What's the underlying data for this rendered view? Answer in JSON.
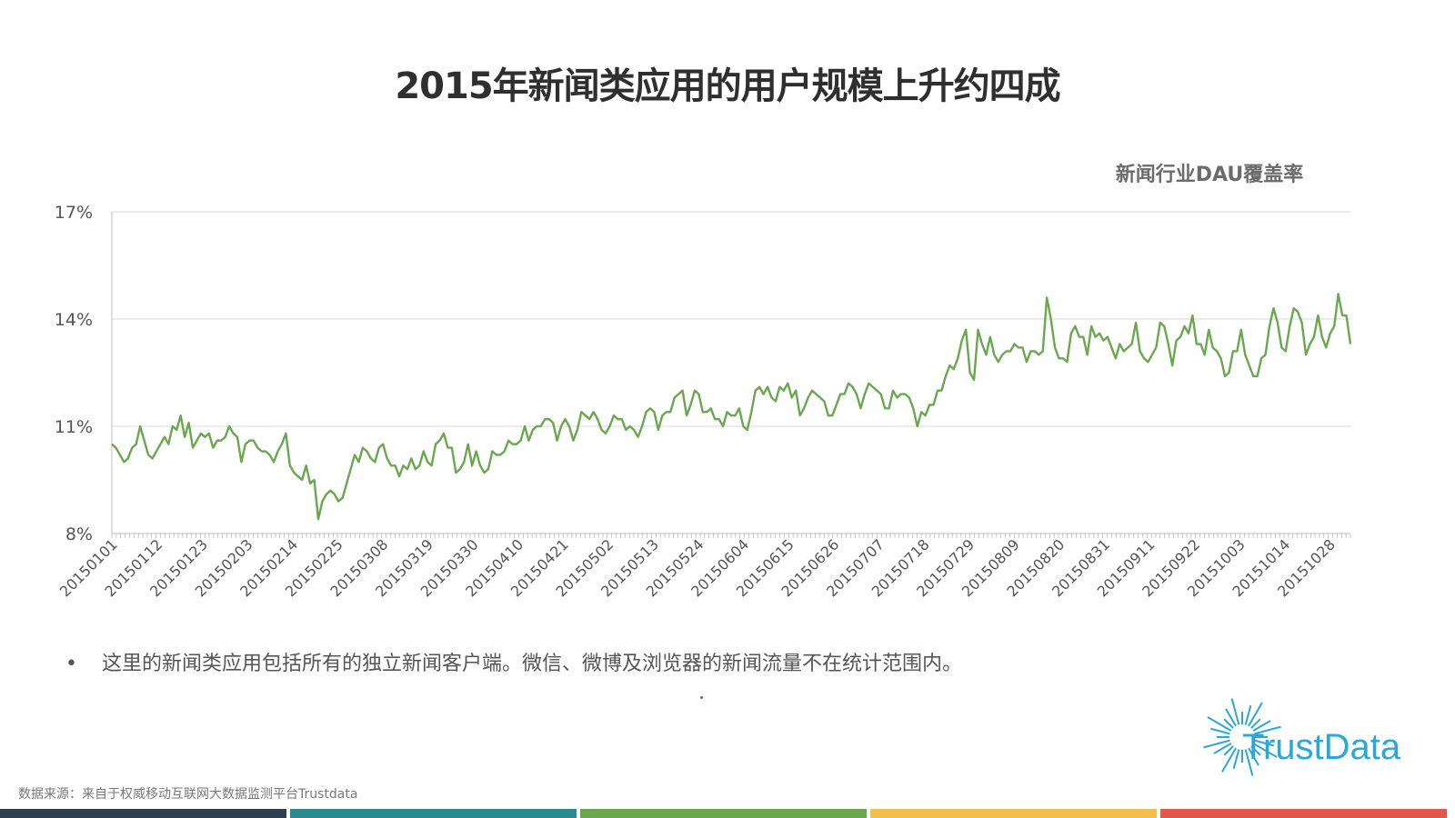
{
  "title": "2015年新闻类应用的用户规模上升约四成",
  "legend": {
    "label": "新闻行业DAU覆盖率",
    "color": "#6aa84f"
  },
  "note": {
    "bullet": "•",
    "text": "这里的新闻类应用包括所有的独立新闻客户端。微信、微博及浏览器的新闻流量不在统计范围内。"
  },
  "source": "数据来源：来自于权威移动互联网大数据监测平台Trustdata",
  "logo": {
    "text": "TrustData",
    "color": "#2ba7d8"
  },
  "bottom_bar_colors": [
    "#2d3e50",
    "#2a8a8f",
    "#6aa84f",
    "#f1c04b",
    "#e2574c"
  ],
  "chart_data": {
    "type": "line",
    "series": [
      {
        "name": "新闻行业DAU覆盖率",
        "color": "#6aa84f",
        "start": "20150101",
        "values": [
          10.5,
          10.4,
          10.2,
          10.0,
          10.1,
          10.4,
          10.5,
          11.0,
          10.6,
          10.2,
          10.1,
          10.3,
          10.5,
          10.7,
          10.5,
          11.0,
          10.9,
          11.3,
          10.7,
          11.1,
          10.4,
          10.6,
          10.8,
          10.7,
          10.8,
          10.4,
          10.6,
          10.6,
          10.7,
          11.0,
          10.8,
          10.7,
          10.0,
          10.5,
          10.6,
          10.6,
          10.4,
          10.3,
          10.3,
          10.2,
          10.0,
          10.3,
          10.5,
          10.8,
          9.9,
          9.7,
          9.6,
          9.5,
          9.9,
          9.4,
          9.5,
          8.4,
          8.9,
          9.1,
          9.2,
          9.1,
          8.9,
          9.0,
          9.4,
          9.8,
          10.2,
          10.0,
          10.4,
          10.3,
          10.1,
          10.0,
          10.4,
          10.5,
          10.1,
          9.9,
          9.9,
          9.6,
          9.9,
          9.8,
          10.1,
          9.8,
          9.9,
          10.3,
          10.0,
          9.9,
          10.5,
          10.6,
          10.8,
          10.4,
          10.4,
          9.7,
          9.8,
          10.0,
          10.5,
          9.9,
          10.3,
          9.9,
          9.7,
          9.8,
          10.3,
          10.2,
          10.2,
          10.3,
          10.6,
          10.5,
          10.5,
          10.6,
          11.0,
          10.6,
          10.9,
          11.0,
          11.0,
          11.2,
          11.2,
          11.1,
          10.6,
          11.0,
          11.2,
          11.0,
          10.6,
          10.9,
          11.4,
          11.3,
          11.2,
          11.4,
          11.2,
          10.9,
          10.8,
          11.0,
          11.3,
          11.2,
          11.2,
          10.9,
          11.0,
          10.9,
          10.7,
          11.0,
          11.4,
          11.5,
          11.4,
          10.9,
          11.3,
          11.4,
          11.4,
          11.8,
          11.9,
          12.0,
          11.3,
          11.6,
          12.0,
          11.9,
          11.4,
          11.4,
          11.5,
          11.2,
          11.2,
          11.0,
          11.4,
          11.3,
          11.3,
          11.5,
          11.0,
          10.9,
          11.4,
          12.0,
          12.1,
          11.9,
          12.1,
          11.8,
          11.7,
          12.1,
          12.0,
          12.2,
          11.8,
          12.0,
          11.3,
          11.5,
          11.8,
          12.0,
          11.9,
          11.8,
          11.7,
          11.3,
          11.3,
          11.6,
          11.9,
          11.9,
          12.2,
          12.1,
          11.9,
          11.5,
          11.9,
          12.2,
          12.1,
          12.0,
          11.9,
          11.5,
          11.5,
          12.0,
          11.8,
          11.9,
          11.9,
          11.8,
          11.5,
          11.0,
          11.4,
          11.3,
          11.6,
          11.6,
          12.0,
          12.0,
          12.4,
          12.7,
          12.6,
          12.9,
          13.4,
          13.7,
          12.5,
          12.3,
          13.7,
          13.3,
          13.0,
          13.5,
          13.0,
          12.8,
          13.0,
          13.1,
          13.1,
          13.3,
          13.2,
          13.2,
          12.8,
          13.1,
          13.1,
          13.0,
          13.1,
          14.6,
          14.0,
          13.2,
          12.9,
          12.9,
          12.8,
          13.6,
          13.8,
          13.5,
          13.5,
          13.0,
          13.8,
          13.5,
          13.6,
          13.4,
          13.5,
          13.2,
          12.9,
          13.3,
          13.1,
          13.2,
          13.3,
          13.9,
          13.1,
          12.9,
          12.8,
          13.0,
          13.2,
          13.9,
          13.8,
          13.3,
          12.7,
          13.4,
          13.5,
          13.8,
          13.6,
          14.1,
          13.3,
          13.3,
          13.0,
          13.7,
          13.2,
          13.1,
          12.9,
          12.4,
          12.5,
          13.1,
          13.1,
          13.7,
          13.0,
          12.7,
          12.4,
          12.4,
          12.9,
          13.0,
          13.8,
          14.3,
          13.9,
          13.2,
          13.1,
          13.8,
          14.3,
          14.2,
          13.9,
          13.0,
          13.3,
          13.5,
          14.1,
          13.5,
          13.2,
          13.6,
          13.8,
          14.7,
          14.1,
          14.1,
          13.3
        ]
      }
    ],
    "x_tick_labels": [
      "20150101",
      "20150112",
      "20150123",
      "20150203",
      "20150214",
      "20150225",
      "20150308",
      "20150319",
      "20150330",
      "20150410",
      "20150421",
      "20150502",
      "20150513",
      "20150524",
      "20150604",
      "20150615",
      "20150626",
      "20150707",
      "20150718",
      "20150729",
      "20150809",
      "20150820",
      "20150831",
      "20150911",
      "20150922",
      "20151003",
      "20151014",
      "20151028"
    ],
    "y_ticks": [
      8,
      11,
      14,
      17
    ],
    "y_tick_labels": [
      "8%",
      "11%",
      "14%",
      "17%"
    ],
    "ylim": [
      8,
      17
    ],
    "grid": true
  }
}
